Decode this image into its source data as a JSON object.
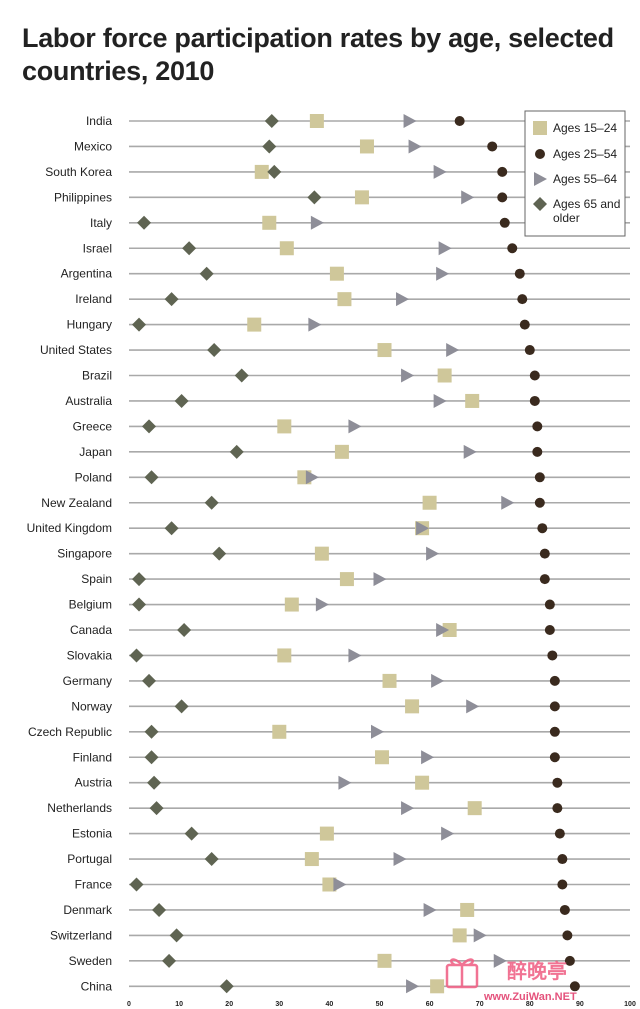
{
  "title": "Labor force participation rates by age, selected countries, 2010",
  "colors": {
    "ages_15_24": "#cfc79a",
    "ages_25_54": "#3a2a1e",
    "ages_55_64": "#8e8e98",
    "ages_65_older": "#5f6452",
    "row_line": "#a9a9a9"
  },
  "chart_data": {
    "type": "scatter",
    "title": "Labor force participation rates by age, selected countries, 2010",
    "xlabel": "",
    "ylabel": "",
    "xlim": [
      0,
      100
    ],
    "x_ticks": [
      "0",
      "10",
      "20",
      "30",
      "40",
      "50",
      "60",
      "70",
      "80",
      "90",
      "100"
    ],
    "grid": false,
    "legend_position": "top-right",
    "categories": [
      "India",
      "Mexico",
      "South Korea",
      "Philippines",
      "Italy",
      "Israel",
      "Argentina",
      "Ireland",
      "Hungary",
      "United States",
      "Brazil",
      "Australia",
      "Greece",
      "Japan",
      "Poland",
      "New Zealand",
      "United Kingdom",
      "Singapore",
      "Spain",
      "Belgium",
      "Canada",
      "Slovakia",
      "Germany",
      "Norway",
      "Czech Republic",
      "Finland",
      "Austria",
      "Netherlands",
      "Estonia",
      "Portugal",
      "France",
      "Denmark",
      "Switzerland",
      "Sweden",
      "China"
    ],
    "series": [
      {
        "name": "Ages 15–24",
        "marker": "square",
        "values": [
          37.5,
          47.5,
          26.5,
          46.5,
          28,
          31.5,
          41.5,
          43,
          25,
          51,
          63,
          68.5,
          31,
          42.5,
          35,
          60,
          58.5,
          38.5,
          43.5,
          32.5,
          64,
          31,
          52,
          56.5,
          30,
          50.5,
          58.5,
          69,
          39.5,
          36.5,
          40,
          67.5,
          66,
          51,
          61.5
        ]
      },
      {
        "name": "Ages 25–54",
        "marker": "circle",
        "values": [
          66,
          72.5,
          74.5,
          74.5,
          75,
          76.5,
          78,
          78.5,
          79,
          80,
          81,
          81,
          81.5,
          81.5,
          82,
          82,
          82.5,
          83,
          83,
          84,
          84,
          84.5,
          85,
          85,
          85,
          85,
          85.5,
          85.5,
          86,
          86.5,
          86.5,
          87,
          87.5,
          88,
          89
        ]
      },
      {
        "name": "Ages 55–64",
        "marker": "triangle",
        "values": [
          56,
          57,
          62,
          67.5,
          37.5,
          63,
          62.5,
          54.5,
          37,
          64.5,
          55.5,
          62,
          45,
          68,
          36.5,
          75.5,
          58.5,
          60.5,
          50,
          38.5,
          62.5,
          45,
          61.5,
          68.5,
          49.5,
          59.5,
          43,
          55.5,
          63.5,
          54,
          42,
          60,
          70,
          74,
          56.5
        ]
      },
      {
        "name": "Ages 65 and older",
        "marker": "diamond",
        "values": [
          28.5,
          28,
          29,
          37,
          3,
          12,
          15.5,
          8.5,
          2,
          17,
          22.5,
          10.5,
          4,
          21.5,
          4.5,
          16.5,
          8.5,
          18,
          2,
          2,
          11,
          1.5,
          4,
          10.5,
          4.5,
          4.5,
          5,
          5.5,
          12.5,
          16.5,
          1.5,
          6,
          9.5,
          8,
          19.5
        ]
      }
    ]
  },
  "watermark": {
    "brand": "醉晚亭",
    "site": "www.ZuiWan.NET"
  }
}
